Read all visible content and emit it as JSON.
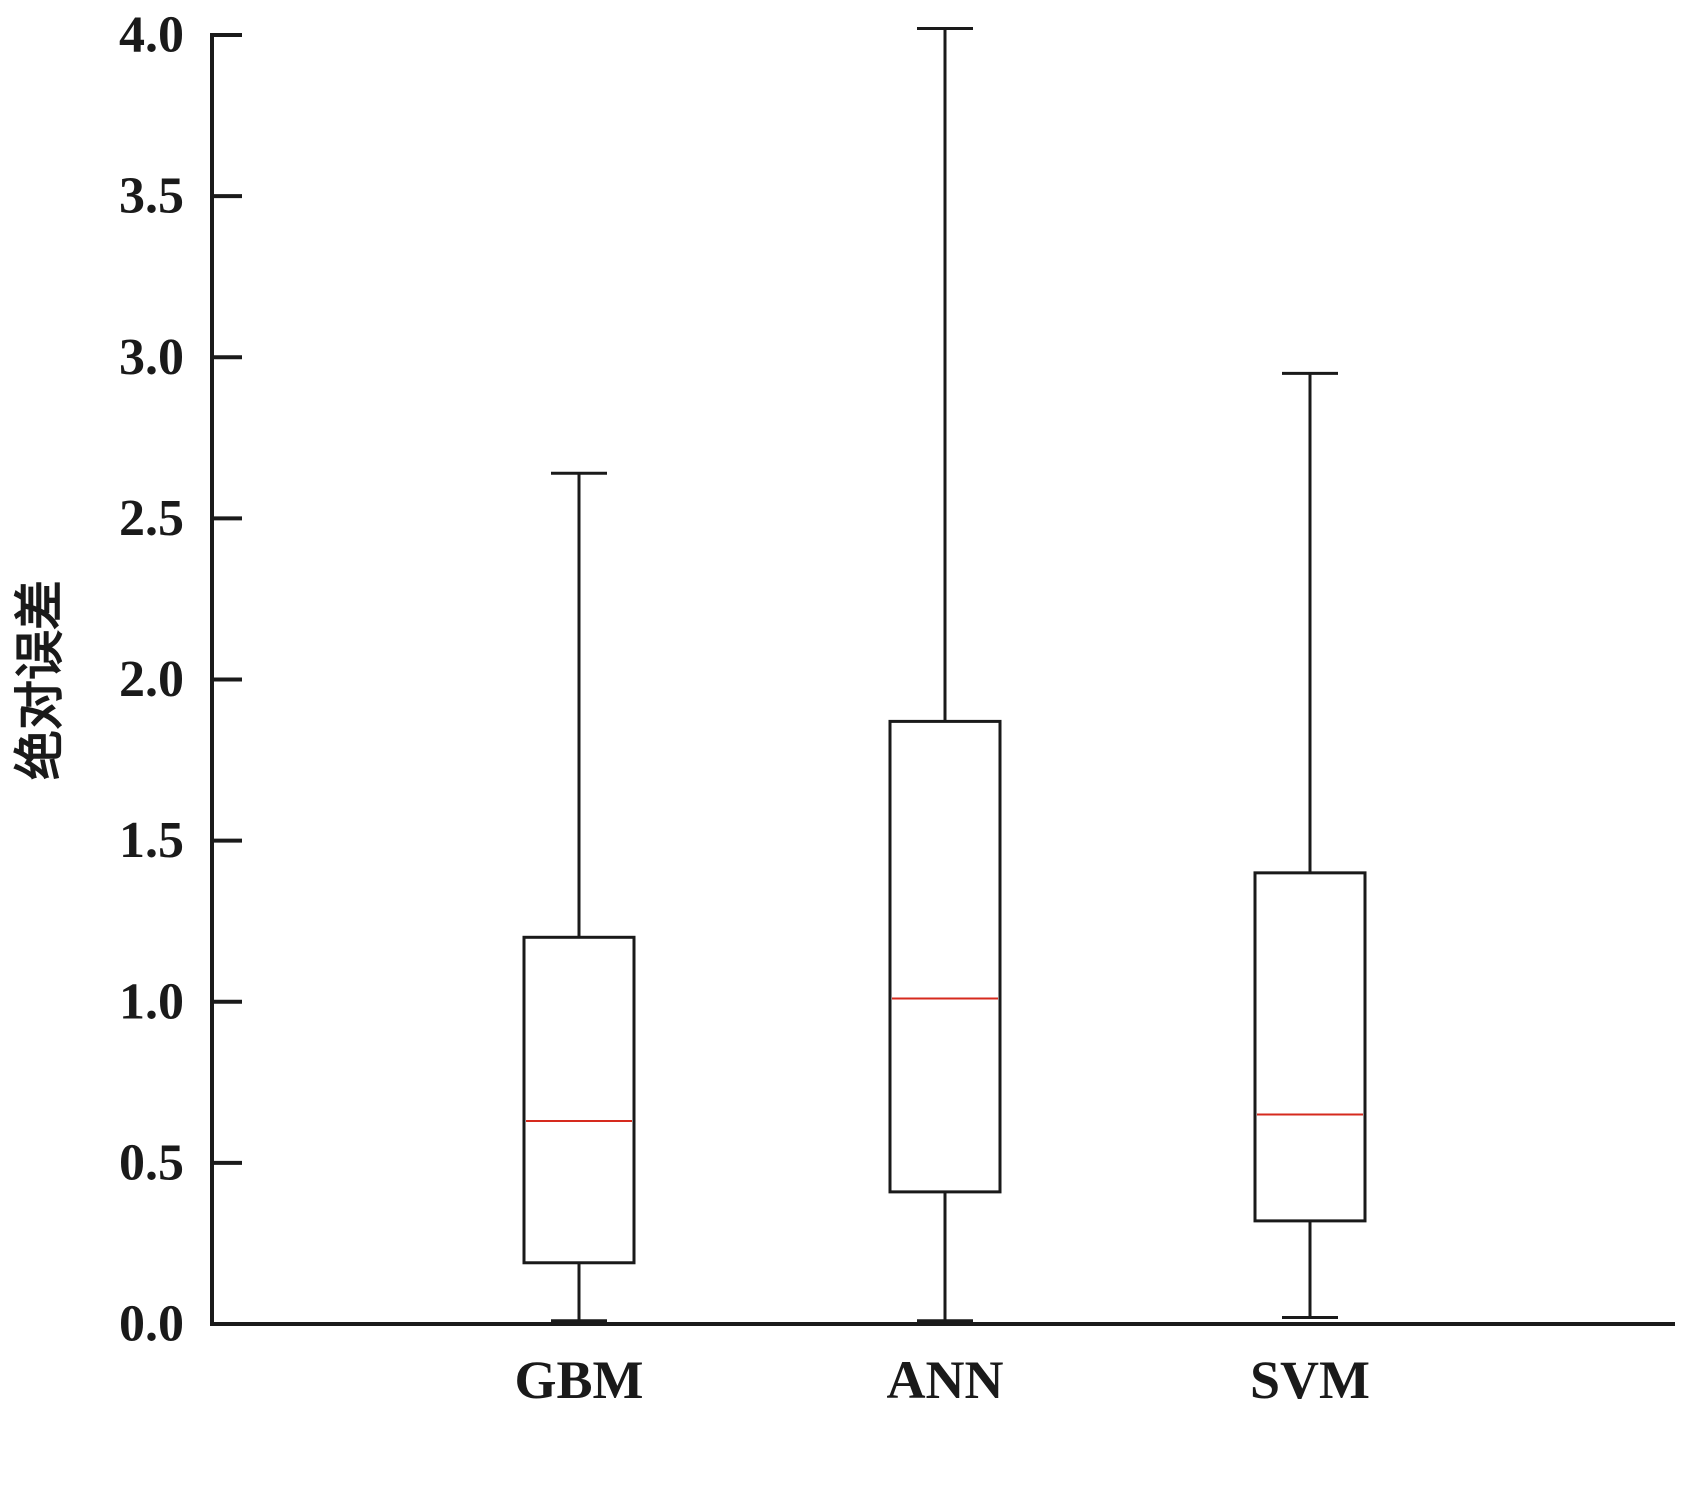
{
  "chart_data": {
    "type": "box",
    "title": "",
    "xlabel": "",
    "ylabel": "绝对误差",
    "ylim": [
      0,
      4.0
    ],
    "yticks": [
      "0.0",
      "0.5",
      "1.0",
      "1.5",
      "2.0",
      "2.5",
      "3.0",
      "3.5",
      "4.0"
    ],
    "ytick_values": [
      0,
      0.5,
      1.0,
      1.5,
      2.0,
      2.5,
      3.0,
      3.5,
      4.0
    ],
    "categories": [
      "GBM",
      "ANN",
      "SVM"
    ],
    "boxes": [
      {
        "name": "GBM",
        "min": 0.01,
        "q1": 0.19,
        "median": 0.63,
        "q3": 1.2,
        "max": 2.64
      },
      {
        "name": "ANN",
        "min": 0.01,
        "q1": 0.41,
        "median": 1.01,
        "q3": 1.87,
        "max": 4.02
      },
      {
        "name": "SVM",
        "min": 0.02,
        "q1": 0.32,
        "median": 0.65,
        "q3": 1.4,
        "max": 2.95
      }
    ],
    "grid": false,
    "colors": {
      "box": "#1a1a1a",
      "median": "#d62a1e",
      "axis": "#1a1a1a"
    }
  }
}
